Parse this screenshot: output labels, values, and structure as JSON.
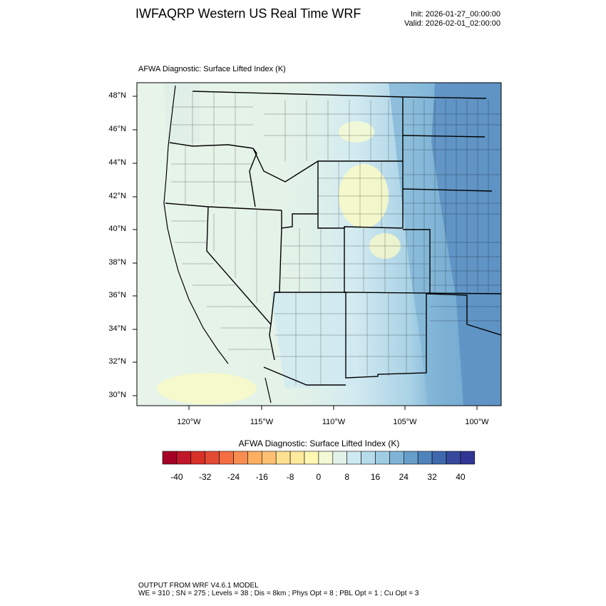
{
  "header": {
    "title": "IWFAQRP Western US Real Time WRF",
    "init": "Init: 2026-01-27_00:00:00",
    "valid": "Valid: 2026-02-01_02:00:00"
  },
  "map": {
    "subtitle": "AFWA Diagnostic: Surface Lifted Index   (K)",
    "lat_labels": [
      "48°N",
      "46°N",
      "44°N",
      "42°N",
      "40°N",
      "38°N",
      "36°N",
      "34°N",
      "32°N",
      "30°N"
    ],
    "lon_labels": [
      "120°W",
      "115°W",
      "110°W",
      "105°W",
      "100°W"
    ],
    "field_colors": {
      "west": "#e8f4ea",
      "yellow": "#f7f9c8",
      "light_blue": "#cfe7ef",
      "mid_blue": "#8dbfda",
      "dark_blue": "#4f83bb"
    }
  },
  "colorbar": {
    "title": "AFWA Diagnostic: Surface Lifted Index  (K)",
    "labels": [
      "-40",
      "-32",
      "-24",
      "-16",
      "-8",
      "0",
      "8",
      "16",
      "24",
      "32",
      "40"
    ],
    "colors": [
      "#a50026",
      "#c0182a",
      "#d73027",
      "#e34a33",
      "#f46d43",
      "#f88d52",
      "#fdae61",
      "#fdc072",
      "#fee090",
      "#fee99c",
      "#fff8b4",
      "#f3f9d4",
      "#e3f2e8",
      "#cde9f1",
      "#b6dcec",
      "#9fcde3",
      "#7fb4d6",
      "#669ec9",
      "#4f83bb",
      "#4069ad",
      "#36499c",
      "#313695"
    ]
  },
  "footer": {
    "line1": "OUTPUT FROM WRF V4.6.1 MODEL",
    "line2": "WE = 310 ; SN = 275 ; Levels = 38 ; Dis = 8km ; Phys Opt = 8 ; PBL Opt = 1 ; Cu Opt = 3"
  }
}
